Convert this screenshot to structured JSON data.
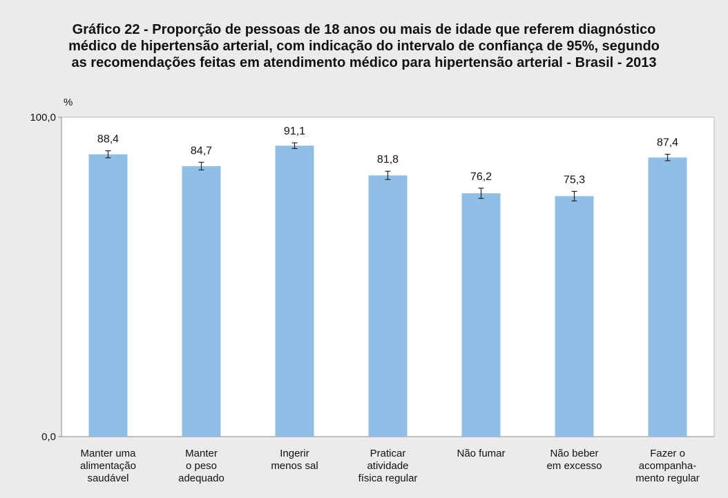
{
  "chart_data": {
    "type": "bar",
    "title": "Gráfico 22 - Proporção de pessoas de 18 anos ou mais de idade que referem diagnóstico médico de hipertensão arterial, com indicação do intervalo de confiança de 95%, segundo as recomendações feitas em atendimento médico para hipertensão arterial  - Brasil - 2013",
    "ylabel": "%",
    "categories": [
      [
        "Manter uma",
        "alimentação",
        "saudável"
      ],
      [
        "Manter",
        "o peso",
        "adequado"
      ],
      [
        "Ingerir",
        "menos sal"
      ],
      [
        "Praticar",
        "atividade",
        "física regular"
      ],
      [
        "Não fumar"
      ],
      [
        "Não beber",
        "em excesso"
      ],
      [
        "Fazer o",
        "acompanha-",
        "mento regular"
      ]
    ],
    "values": [
      88.4,
      84.7,
      91.1,
      81.8,
      76.2,
      75.3,
      87.4
    ],
    "value_labels": [
      "88,4",
      "84,7",
      "91,1",
      "81,8",
      "76,2",
      "75,3",
      "87,4"
    ],
    "errors": [
      1.1,
      1.2,
      0.9,
      1.3,
      1.6,
      1.5,
      1.0
    ],
    "color": "#8fbfe7",
    "ylim": [
      0,
      100
    ],
    "yticks": [
      {
        "value": 0,
        "label": "0,0"
      },
      {
        "value": 100,
        "label": "100,0"
      }
    ]
  }
}
